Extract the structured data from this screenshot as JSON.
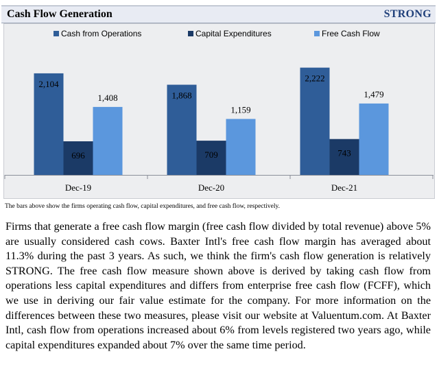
{
  "header": {
    "title": "Cash Flow Generation",
    "rating": "STRONG"
  },
  "colors": {
    "cash_from_operations": "#2f5d98",
    "capital_expenditures": "#1b3a66",
    "free_cash_flow": "#5b97dd",
    "header_bg": "#e8ebf3",
    "rating_text": "#1f3f7a"
  },
  "chart_data": {
    "type": "bar",
    "categories": [
      "Dec-19",
      "Dec-20",
      "Dec-21"
    ],
    "series": [
      {
        "name": "Cash from Operations",
        "values": [
          2104,
          1868,
          2222
        ],
        "labels": [
          "2,104",
          "1,868",
          "2,222"
        ]
      },
      {
        "name": "Capital Expenditures",
        "values": [
          696,
          709,
          743
        ],
        "labels": [
          "696",
          "709",
          "743"
        ]
      },
      {
        "name": "Free Cash Flow",
        "values": [
          1408,
          1159,
          1479
        ],
        "labels": [
          "1,408",
          "1,159",
          "1,479"
        ]
      }
    ],
    "ylim": [
      0,
      2600
    ],
    "legend": "top",
    "grid": false
  },
  "caption": "The bars above show the firms operating cash flow, capital expenditures, and free cash flow, respectively.",
  "body_text": "Firms that generate a free cash flow margin (free cash flow divided by total revenue) above 5% are usually considered cash cows. Baxter Intl's free cash flow margin has averaged about 11.3% during the past 3 years. As such, we think the firm's cash flow generation is relatively STRONG. The free cash flow measure shown above is derived by taking cash flow from operations less capital expenditures and differs from enterprise free cash flow (FCFF), which we use in deriving our fair value estimate for the company. For more information on the differences between these two measures, please visit our website at Valuentum.com. At Baxter Intl, cash flow from operations increased about 6% from levels registered two years ago, while capital expenditures expanded about 7% over the same time period."
}
